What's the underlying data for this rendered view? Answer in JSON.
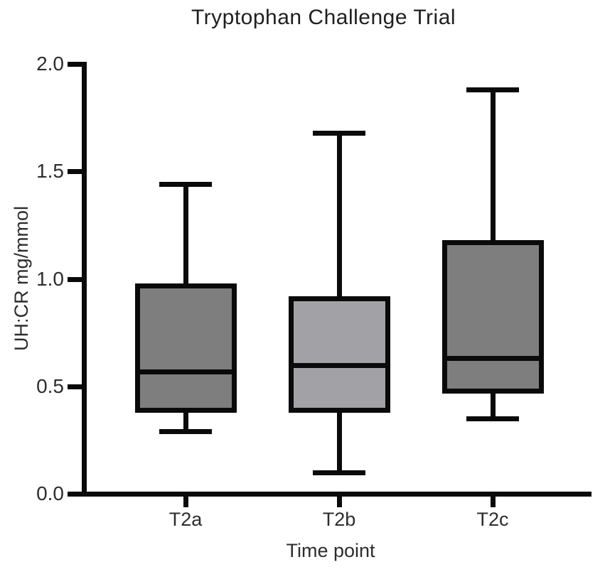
{
  "title": "Tryptophan Challenge Trial",
  "chart_data": {
    "type": "boxplot",
    "title": "Tryptophan Challenge Trial",
    "xlabel": "Time point",
    "ylabel": "UH:CR mg/mmol",
    "ylim": [
      0.0,
      2.0
    ],
    "y_ticks": [
      0.0,
      0.5,
      1.0,
      1.5,
      2.0
    ],
    "y_tick_labels": [
      "0.0",
      "0.5",
      "1.0",
      "1.5",
      "2.0"
    ],
    "categories": [
      "T2a",
      "T2b",
      "T2c"
    ],
    "series": [
      {
        "name": "T2a",
        "min": 0.29,
        "q1": 0.39,
        "median": 0.57,
        "q3": 0.97,
        "max": 1.44,
        "fill": "#7e7e7e"
      },
      {
        "name": "T2b",
        "min": 0.1,
        "q1": 0.39,
        "median": 0.6,
        "q3": 0.91,
        "max": 1.68,
        "fill": "#a1a1a6"
      },
      {
        "name": "T2c",
        "min": 0.35,
        "q1": 0.48,
        "median": 0.63,
        "q3": 1.17,
        "max": 1.88,
        "fill": "#7e7e7e"
      }
    ],
    "grid": false,
    "legend": false,
    "colors": {
      "line": "#0a0a0a",
      "background": "#ffffff"
    }
  }
}
